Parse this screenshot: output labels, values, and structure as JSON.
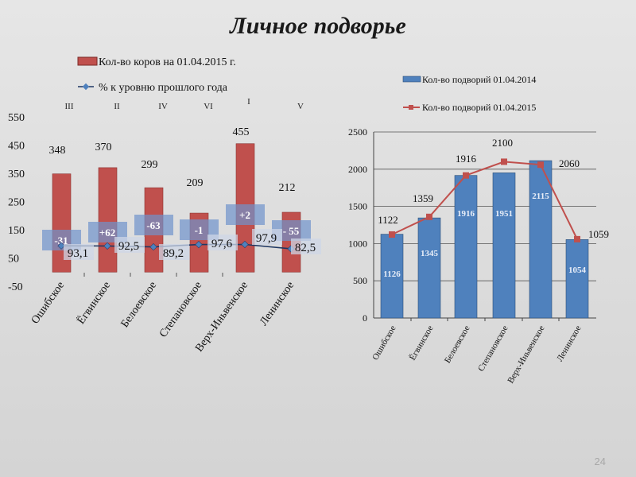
{
  "title": "Личное подворье",
  "page_number": "24",
  "chart_data": [
    {
      "type": "bar",
      "categories": [
        "Ошибское",
        "Ёгвинское",
        "Белоевское",
        "Степановское",
        "Верх-Иньвенское",
        "Ленинское"
      ],
      "rank_labels": [
        "III",
        "II",
        "IV",
        "VI",
        "I",
        "V"
      ],
      "series": [
        {
          "name": "Кол-во коров на 01.04.2015 г.",
          "kind": "bar",
          "color": "#c0504d",
          "values": [
            348,
            370,
            299,
            209,
            455,
            212
          ],
          "labels": [
            "348",
            "370",
            "299",
            "209",
            "455",
            "212"
          ]
        },
        {
          "name": "% к уровню прошлого года",
          "kind": "line",
          "color": "#1f3864",
          "marker_color": "#4f81bd",
          "values": [
            93.1,
            92.5,
            89.2,
            97.6,
            97.9,
            82.5
          ],
          "labels": [
            "93,1",
            "92,5",
            "89,2",
            "97,6",
            "97,9",
            "82,5"
          ]
        }
      ],
      "change_labels": [
        "-31",
        "+62",
        "-63",
        "-1",
        "+2",
        "- 55"
      ],
      "ylim": [
        -50,
        550
      ],
      "yticks": [
        "550",
        "450",
        "350",
        "250",
        "150",
        "50",
        "-50"
      ],
      "legend": "top"
    },
    {
      "type": "bar",
      "categories": [
        "Ошибское",
        "Ёгвинское",
        "Белоевское",
        "Степановское",
        "Верх-Иньвенское",
        "Ленинское"
      ],
      "series": [
        {
          "name": "Кол-во подворий 01.04.2014",
          "kind": "bar",
          "color": "#4f81bd",
          "values": [
            1126,
            1345,
            1916,
            1951,
            2115,
            1054
          ],
          "labels": [
            "1126",
            "1345",
            "1916",
            "1951",
            "2115",
            "1054"
          ]
        },
        {
          "name": "Кол-во подворий 01.04.2015",
          "kind": "line",
          "color": "#c0504d",
          "values": [
            1122,
            1359,
            1916,
            2100,
            2060,
            1059
          ],
          "labels": [
            "1122",
            "1359",
            "1916",
            "2100",
            "2060",
            "1059"
          ]
        }
      ],
      "ylim": [
        0,
        2500
      ],
      "yticks": [
        "2500",
        "2000",
        "1500",
        "1000",
        "500",
        "0"
      ],
      "grid": true,
      "legend": "top"
    }
  ]
}
